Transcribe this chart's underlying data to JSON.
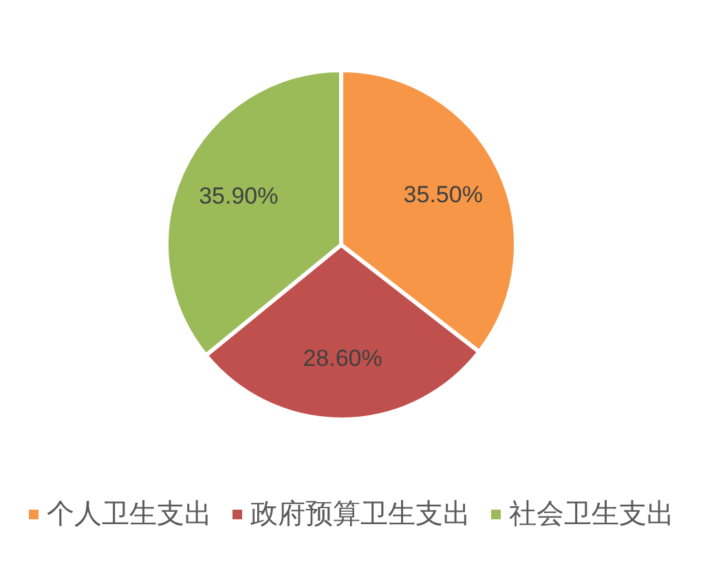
{
  "chart_data": {
    "type": "pie",
    "categories": [
      "个人卫生支出",
      "政府预算卫生支出",
      "社会卫生支出"
    ],
    "values": [
      35.5,
      28.6,
      35.9
    ],
    "colors": [
      "#f79646",
      "#c0504d",
      "#9bbb59"
    ],
    "value_labels": [
      "35.50%",
      "28.60%",
      "35.90%"
    ],
    "legend": "bottom"
  }
}
